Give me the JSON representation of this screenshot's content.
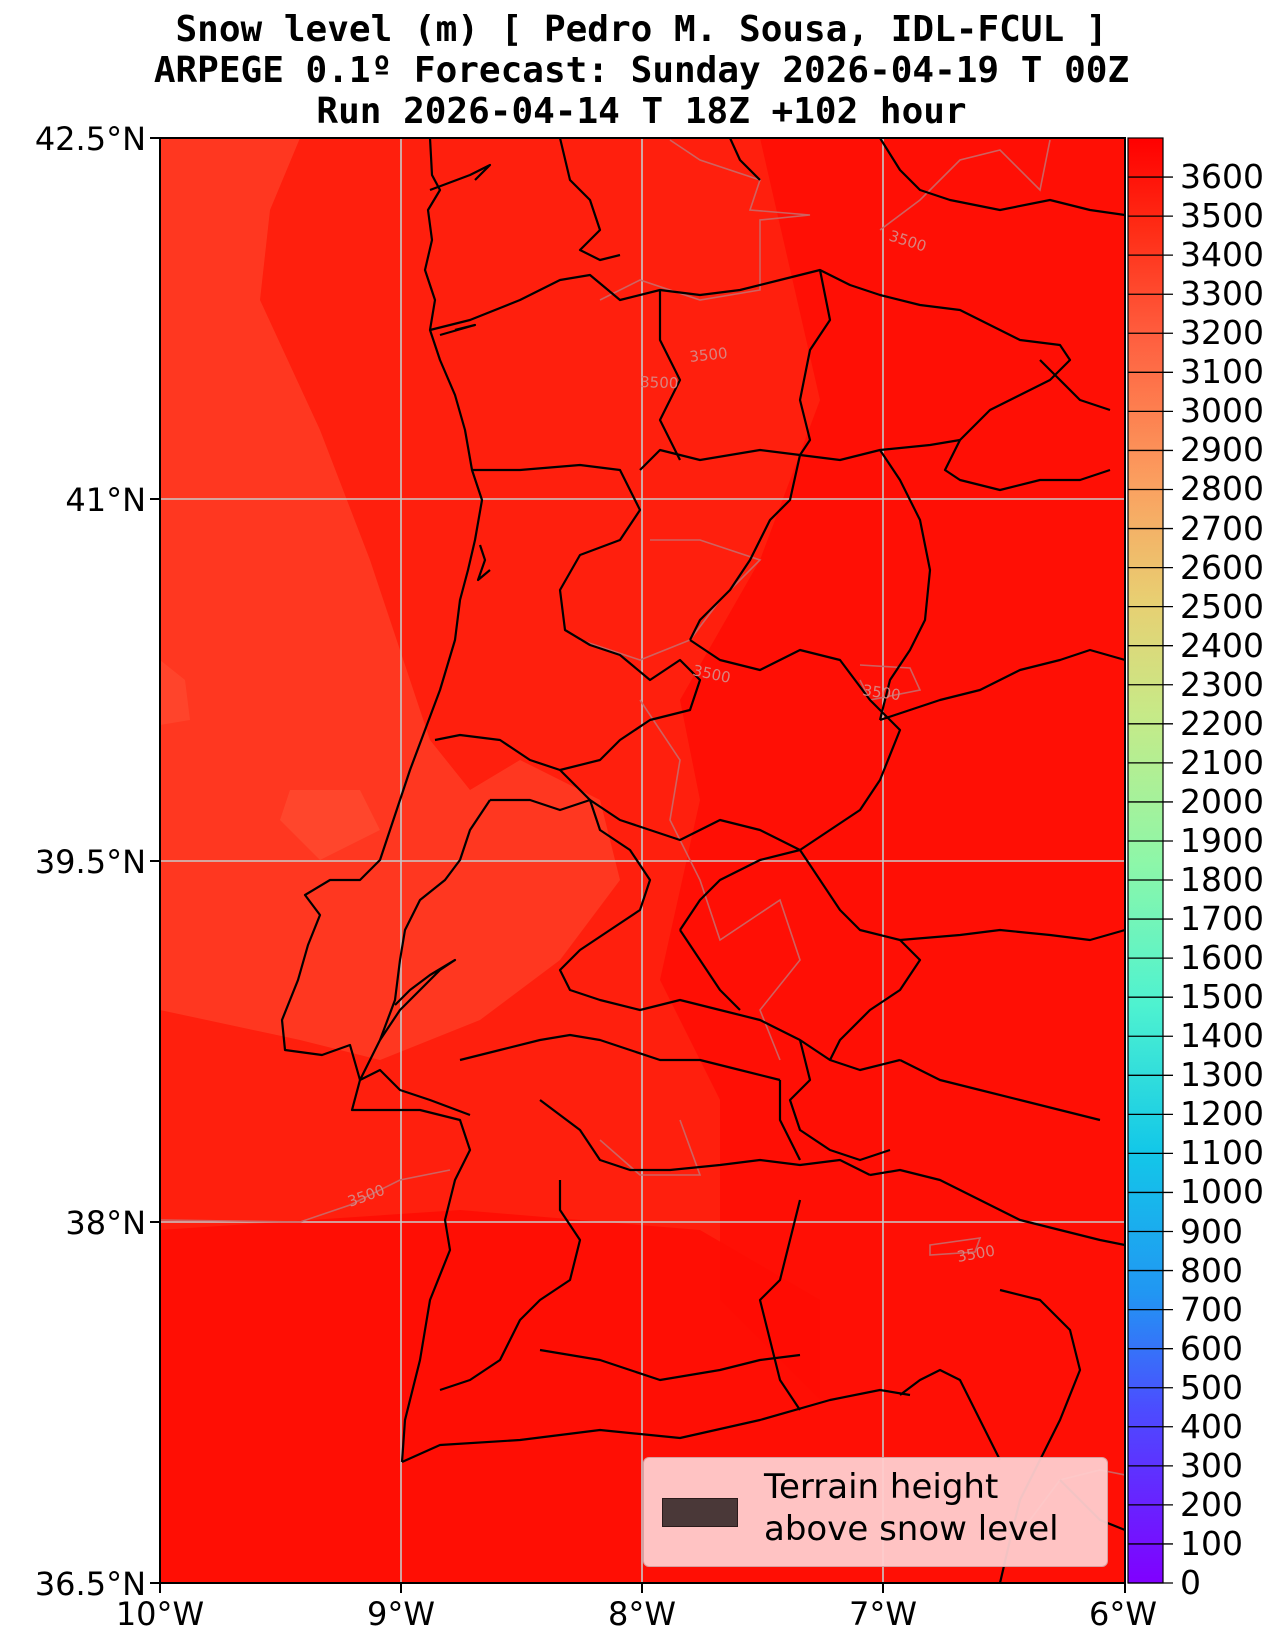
{
  "title": {
    "line1": "Snow level (m) [ Pedro M. Sousa, IDL-FCUL ]",
    "line2": "ARPEGE 0.1º Forecast: Sunday 2026-04-19 T 00Z",
    "line3": "Run 2026-04-14 T 18Z +102 hour"
  },
  "axes": {
    "lat_labels": [
      "42.5°N",
      "41°N",
      "39.5°N",
      "38°N",
      "36.5°N"
    ],
    "lon_labels": [
      "10°W",
      "9°W",
      "8°W",
      "7°W",
      "6°W"
    ]
  },
  "colorbar": {
    "min": 0,
    "max": 3700,
    "labels": [
      "3600",
      "3500",
      "3400",
      "3300",
      "3200",
      "3100",
      "3000",
      "2900",
      "2800",
      "2700",
      "2600",
      "2500",
      "2400",
      "2300",
      "2200",
      "2100",
      "2000",
      "1900",
      "1800",
      "1700",
      "1600",
      "1500",
      "1400",
      "1300",
      "1200",
      "1100",
      "1000",
      "900",
      "800",
      "700",
      "600",
      "500",
      "400",
      "300",
      "200",
      "100",
      "0"
    ]
  },
  "contour_labels": [
    "3500",
    "3500",
    "3500",
    "3500",
    "3500",
    "3500",
    "3500"
  ],
  "legend": {
    "label_line1": "Terrain height",
    "label_line2": "above snow level",
    "swatch_color": "#4a3838"
  },
  "colors": {
    "field_main": "#ff1a0a",
    "field_light": "#ff3a22",
    "field_dark": "#ff0000"
  }
}
